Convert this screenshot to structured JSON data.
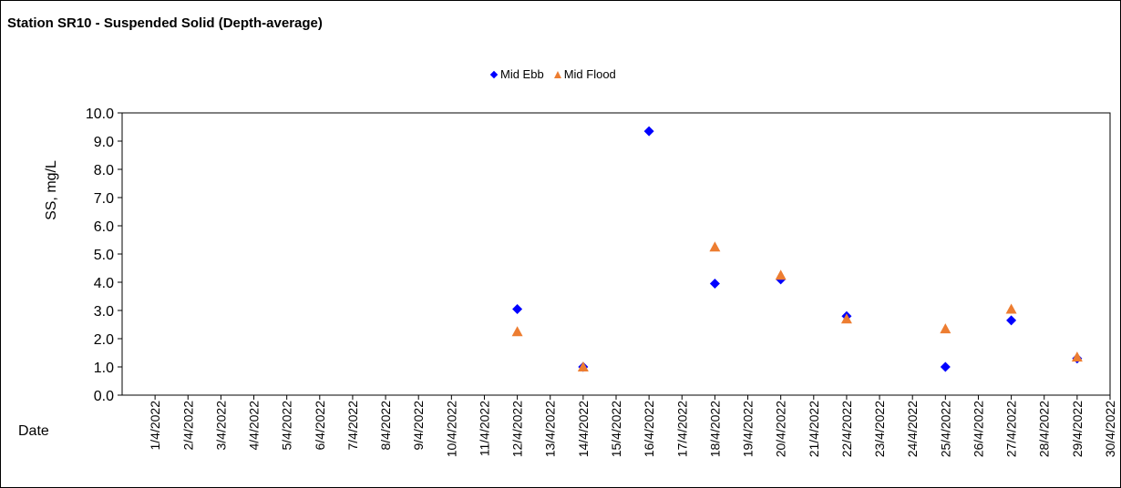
{
  "chart_data": {
    "type": "scatter",
    "title": "Station SR10 - Suspended Solid (Depth-average)",
    "xlabel": "Date",
    "ylabel": "SS, mg/L",
    "ylim": [
      0,
      10
    ],
    "yticks": [
      "0.0",
      "1.0",
      "2.0",
      "3.0",
      "4.0",
      "5.0",
      "6.0",
      "7.0",
      "8.0",
      "9.0",
      "10.0"
    ],
    "categories": [
      "1/4/2022",
      "2/4/2022",
      "3/4/2022",
      "4/4/2022",
      "5/4/2022",
      "6/4/2022",
      "7/4/2022",
      "8/4/2022",
      "9/4/2022",
      "10/4/2022",
      "11/4/2022",
      "12/4/2022",
      "13/4/2022",
      "14/4/2022",
      "15/4/2022",
      "16/4/2022",
      "17/4/2022",
      "18/4/2022",
      "19/4/2022",
      "20/4/2022",
      "21/4/2022",
      "22/4/2022",
      "23/4/2022",
      "24/4/2022",
      "25/4/2022",
      "26/4/2022",
      "27/4/2022",
      "28/4/2022",
      "29/4/2022",
      "30/4/2022"
    ],
    "legend_position": "top-center",
    "grid": false,
    "series": [
      {
        "name": "Mid Ebb",
        "color": "#0000ff",
        "marker": "diamond",
        "points": [
          {
            "x": "12/4/2022",
            "y": 3.05
          },
          {
            "x": "14/4/2022",
            "y": 1.0
          },
          {
            "x": "16/4/2022",
            "y": 9.35
          },
          {
            "x": "18/4/2022",
            "y": 3.95
          },
          {
            "x": "20/4/2022",
            "y": 4.1
          },
          {
            "x": "22/4/2022",
            "y": 2.8
          },
          {
            "x": "25/4/2022",
            "y": 1.0
          },
          {
            "x": "27/4/2022",
            "y": 2.65
          },
          {
            "x": "29/4/2022",
            "y": 1.3
          }
        ]
      },
      {
        "name": "Mid Flood",
        "color": "#ed7d31",
        "marker": "triangle",
        "points": [
          {
            "x": "12/4/2022",
            "y": 2.25
          },
          {
            "x": "14/4/2022",
            "y": 1.0
          },
          {
            "x": "18/4/2022",
            "y": 5.25
          },
          {
            "x": "20/4/2022",
            "y": 4.25
          },
          {
            "x": "22/4/2022",
            "y": 2.7
          },
          {
            "x": "25/4/2022",
            "y": 2.35
          },
          {
            "x": "27/4/2022",
            "y": 3.05
          },
          {
            "x": "29/4/2022",
            "y": 1.35
          }
        ]
      }
    ]
  }
}
